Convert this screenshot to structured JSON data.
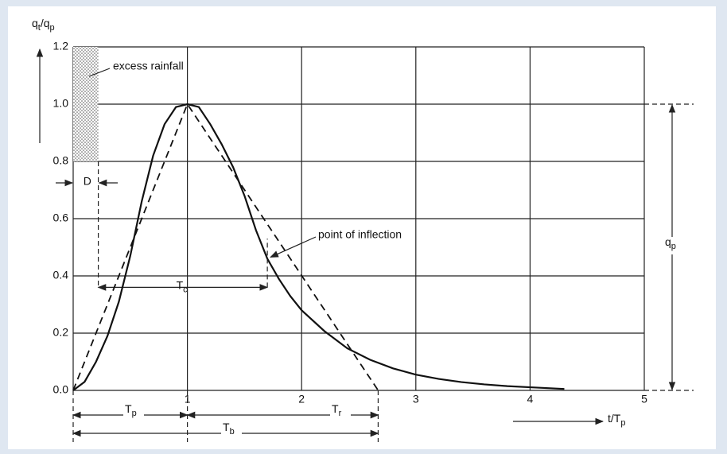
{
  "chart_data": {
    "type": "line",
    "y_label": [
      "q",
      "t",
      "/q",
      "p"
    ],
    "x_label": [
      "t/T",
      "p"
    ],
    "xlim": [
      0,
      5
    ],
    "ylim": [
      0,
      1.2
    ],
    "xticks": [
      1,
      2,
      3,
      4,
      5
    ],
    "yticks": [
      {
        "value": 0,
        "label": "0.0"
      },
      0.2,
      0.4,
      0.6,
      0.8,
      {
        "value": 1,
        "label": "1.0"
      },
      1.2
    ],
    "grid": true,
    "series": [
      {
        "style": "solid",
        "color": "#111",
        "x": [
          0,
          0.1,
          0.2,
          0.3,
          0.4,
          0.5,
          0.6,
          0.7,
          0.8,
          0.9,
          1.0,
          1.1,
          1.2,
          1.3,
          1.4,
          1.5,
          1.6,
          1.7,
          1.8,
          1.9,
          2.0,
          2.2,
          2.4,
          2.6,
          2.8,
          3.0,
          3.2,
          3.4,
          3.6,
          3.8,
          4.0,
          4.3
        ],
        "values": [
          0,
          0.03,
          0.1,
          0.19,
          0.31,
          0.47,
          0.66,
          0.82,
          0.93,
          0.99,
          1.0,
          0.99,
          0.93,
          0.86,
          0.78,
          0.68,
          0.56,
          0.46,
          0.39,
          0.33,
          0.28,
          0.207,
          0.147,
          0.107,
          0.077,
          0.055,
          0.04,
          0.029,
          0.021,
          0.015,
          0.011,
          0.005
        ]
      },
      {
        "style": "dashed",
        "color": "#111",
        "x": [
          0,
          1,
          2.67
        ],
        "values": [
          0,
          1,
          0
        ]
      }
    ],
    "excess_rainfall": {
      "label": "excess rainfall",
      "duration": 0.22,
      "bottom": 0.8,
      "top": 1.2
    },
    "D": "D",
    "Tc": {
      "label": [
        "T",
        "c"
      ],
      "start": 0.22,
      "end": 1.7,
      "level": 0.36
    },
    "inflection": {
      "label": "point of inflection",
      "x": 1.7,
      "y": 0.46
    },
    "Tp": {
      "label": [
        "T",
        "p"
      ],
      "end": 1
    },
    "Tr": {
      "label": [
        "T",
        "r"
      ]
    },
    "Tb": {
      "label": [
        "T",
        "b"
      ],
      "end": 2.67
    },
    "qp": {
      "label": [
        "q",
        "p"
      ],
      "value": 1
    }
  }
}
